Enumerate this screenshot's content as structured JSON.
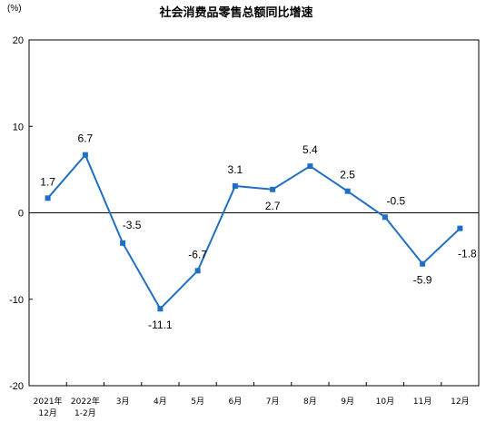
{
  "chart_data": {
    "type": "line",
    "title": "社会消费品零售总额同比增速",
    "unit_label": "(%)",
    "ylim": [
      -20,
      20
    ],
    "yticks": [
      "20",
      "10",
      "0",
      "-10",
      "-20"
    ],
    "categories": [
      [
        "2021年",
        "12月"
      ],
      [
        "2022年",
        "1-2月"
      ],
      [
        "3月"
      ],
      [
        "4月"
      ],
      [
        "5月"
      ],
      [
        "6月"
      ],
      [
        "7月"
      ],
      [
        "8月"
      ],
      [
        "9月"
      ],
      [
        "10月"
      ],
      [
        "11月"
      ],
      [
        "12月"
      ]
    ],
    "values": [
      1.7,
      6.7,
      -3.5,
      -11.1,
      -6.7,
      3.1,
      2.7,
      5.4,
      2.5,
      -0.5,
      -5.9,
      -1.8
    ],
    "data_labels": [
      "1.7",
      "6.7",
      "-3.5",
      "-11.1",
      "-6.7",
      "3.1",
      "2.7",
      "5.4",
      "2.5",
      "-0.5",
      "-5.9",
      "-1.8"
    ],
    "line_color": "#1f6fc5",
    "grid": false
  }
}
